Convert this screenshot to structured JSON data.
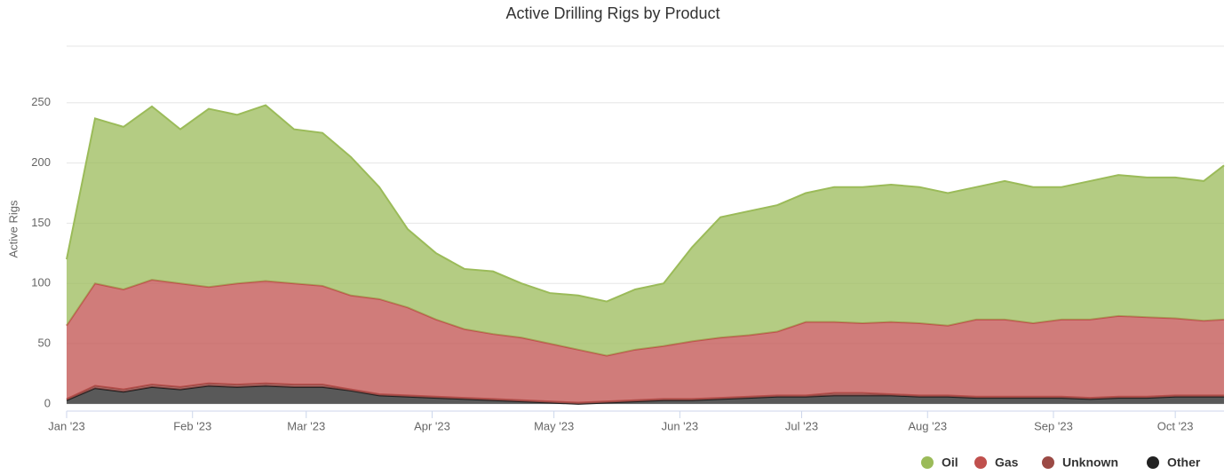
{
  "chart_data": {
    "type": "stacked_area",
    "title": "Active Drilling Rigs by Product",
    "y_label": "Active Rigs",
    "x": [
      0,
      7,
      14,
      21,
      28,
      35,
      42,
      49,
      56,
      63,
      70,
      77,
      84,
      91,
      98,
      105,
      112,
      119,
      126,
      133,
      140,
      147,
      154,
      161,
      168,
      175,
      182,
      189,
      196,
      203,
      210,
      217,
      224,
      231,
      238,
      245,
      252,
      259,
      266,
      273,
      280,
      285
    ],
    "xlim": [
      0,
      285
    ],
    "xticks": [
      {
        "value": 0,
        "label": "Jan '23"
      },
      {
        "value": 31,
        "label": "Feb '23"
      },
      {
        "value": 59,
        "label": "Mar '23"
      },
      {
        "value": 90,
        "label": "Apr '23"
      },
      {
        "value": 120,
        "label": "May '23"
      },
      {
        "value": 151,
        "label": "Jun '23"
      },
      {
        "value": 181,
        "label": "Jul '23"
      },
      {
        "value": 212,
        "label": "Aug '23"
      },
      {
        "value": 243,
        "label": "Sep '23"
      },
      {
        "value": 273,
        "label": "Oct '23"
      }
    ],
    "ylim": [
      -6,
      297
    ],
    "yticks": [
      0,
      50,
      100,
      150,
      200,
      250
    ],
    "grid": true,
    "legend": "bottom-right",
    "series": [
      {
        "name": "Oil",
        "color": "#9bbb59",
        "values": [
          55,
          137,
          135,
          144,
          128,
          148,
          140,
          146,
          128,
          127,
          115,
          93,
          65,
          55,
          50,
          52,
          45,
          42,
          45,
          45,
          50,
          52,
          78,
          100,
          103,
          105,
          107,
          112,
          113,
          114,
          113,
          110,
          110,
          115,
          113,
          110,
          115,
          117,
          116,
          117,
          116,
          128
        ]
      },
      {
        "name": "Gas",
        "color": "#c0504d",
        "values": [
          61,
          85,
          83,
          87,
          86,
          80,
          84,
          85,
          84,
          82,
          78,
          79,
          73,
          64,
          57,
          54,
          52,
          48,
          44,
          38,
          42,
          44,
          48,
          50,
          51,
          53,
          61,
          59,
          58,
          60,
          60,
          58,
          64,
          64,
          61,
          64,
          65,
          67,
          66,
          64,
          62,
          63
        ]
      },
      {
        "name": "Unknown",
        "color": "#9b4a45",
        "values": [
          1,
          2,
          2,
          2,
          2,
          2,
          2,
          2,
          2,
          2,
          1,
          1,
          1,
          1,
          1,
          1,
          1,
          1,
          1,
          1,
          1,
          1,
          1,
          1,
          1,
          1,
          1,
          2,
          2,
          1,
          1,
          1,
          1,
          1,
          1,
          1,
          1,
          1,
          1,
          1,
          1,
          1
        ]
      },
      {
        "name": "Other",
        "color": "#222222",
        "values": [
          3,
          13,
          10,
          14,
          12,
          15,
          14,
          15,
          14,
          14,
          11,
          7,
          6,
          5,
          4,
          3,
          2,
          1,
          0,
          1,
          2,
          3,
          3,
          4,
          5,
          6,
          6,
          7,
          7,
          7,
          6,
          6,
          5,
          5,
          5,
          5,
          4,
          5,
          5,
          6,
          6,
          6
        ]
      }
    ]
  }
}
